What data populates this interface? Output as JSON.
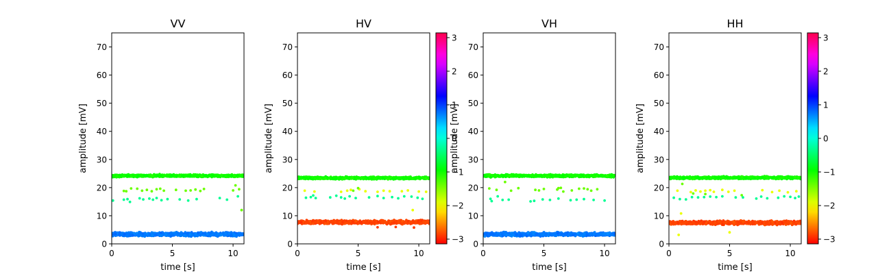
{
  "figure": {
    "background": "#ffffff"
  },
  "chart_data": [
    {
      "type": "scatter",
      "title": "VV",
      "xlabel": "time [s]",
      "ylabel": "amplitude [mV]",
      "xlim": [
        0,
        10.9
      ],
      "ylim": [
        0,
        75
      ],
      "xticks": [
        0,
        5,
        10
      ],
      "yticks": [
        0,
        10,
        20,
        30,
        40,
        50,
        60,
        70
      ],
      "grid": false,
      "colorbar": false,
      "series": [
        {
          "kind": "band",
          "x_range": [
            0,
            10.9
          ],
          "y_center": 24.2,
          "y_spread": 0.6,
          "phase": -1.0,
          "count": 900
        },
        {
          "kind": "band",
          "x_range": [
            0,
            10.9
          ],
          "y_center": 3.4,
          "y_spread": 0.9,
          "phase": 0.75,
          "count": 900
        },
        {
          "kind": "points",
          "phase": -1.4,
          "points": [
            [
              1.0,
              18.8
            ],
            [
              1.2,
              18.7
            ],
            [
              1.6,
              19.7
            ],
            [
              2.1,
              19.6
            ],
            [
              2.5,
              18.9
            ],
            [
              2.9,
              19.2
            ],
            [
              3.3,
              18.7
            ],
            [
              3.7,
              19.4
            ],
            [
              4.0,
              19.6
            ],
            [
              4.3,
              18.9
            ],
            [
              5.3,
              19.2
            ],
            [
              6.1,
              18.9
            ],
            [
              6.5,
              19.0
            ],
            [
              6.9,
              19.3
            ],
            [
              7.3,
              18.8
            ],
            [
              7.6,
              19.5
            ],
            [
              10.0,
              19.0
            ],
            [
              10.2,
              20.8
            ],
            [
              10.5,
              19.4
            ],
            [
              10.7,
              12.0
            ]
          ]
        },
        {
          "kind": "points",
          "phase": -0.3,
          "points": [
            [
              0.1,
              15.4
            ],
            [
              1.0,
              15.7
            ],
            [
              1.3,
              15.9
            ],
            [
              1.5,
              14.9
            ],
            [
              2.3,
              16.2
            ],
            [
              2.6,
              15.8
            ],
            [
              3.1,
              16.1
            ],
            [
              3.4,
              15.7
            ],
            [
              3.7,
              16.3
            ],
            [
              4.1,
              15.5
            ],
            [
              4.6,
              15.9
            ],
            [
              5.6,
              15.8
            ],
            [
              6.3,
              15.4
            ],
            [
              7.0,
              15.9
            ],
            [
              8.9,
              16.3
            ],
            [
              9.5,
              15.7
            ],
            [
              10.4,
              16.9
            ]
          ]
        }
      ]
    },
    {
      "type": "scatter",
      "title": "HV",
      "xlabel": "time [s]",
      "ylabel": "amplitude [mV]",
      "xlim": [
        0,
        10.9
      ],
      "ylim": [
        0,
        75
      ],
      "xticks": [
        0,
        5,
        10
      ],
      "yticks": [
        0,
        10,
        20,
        30,
        40,
        50,
        60,
        70
      ],
      "grid": false,
      "colorbar": true,
      "series": [
        {
          "kind": "band",
          "x_range": [
            0,
            10.9
          ],
          "y_center": 23.4,
          "y_spread": 0.6,
          "phase": -1.0,
          "count": 900
        },
        {
          "kind": "band",
          "x_range": [
            0,
            10.9
          ],
          "y_center": 7.7,
          "y_spread": 0.9,
          "phase": -2.85,
          "count": 900
        },
        {
          "kind": "points",
          "phase": -1.95,
          "points": [
            [
              0.6,
              18.9
            ],
            [
              1.4,
              18.6
            ],
            [
              3.6,
              18.5
            ],
            [
              4.1,
              18.9
            ],
            [
              4.4,
              19.2
            ],
            [
              5.1,
              19.4
            ],
            [
              5.6,
              18.7
            ],
            [
              6.6,
              18.5
            ],
            [
              7.1,
              18.9
            ],
            [
              7.6,
              18.7
            ],
            [
              8.6,
              18.7
            ],
            [
              9.1,
              19.0
            ],
            [
              10.0,
              18.6
            ],
            [
              10.6,
              18.5
            ],
            [
              9.5,
              12.0
            ]
          ]
        },
        {
          "kind": "points",
          "phase": -1.4,
          "points": [
            [
              5.0,
              19.8
            ],
            [
              4.6,
              18.9
            ]
          ]
        },
        {
          "kind": "points",
          "phase": -0.3,
          "points": [
            [
              0.7,
              16.4
            ],
            [
              1.1,
              16.6
            ],
            [
              1.5,
              16.3
            ],
            [
              1.3,
              17.2
            ],
            [
              2.7,
              16.5
            ],
            [
              3.2,
              17.1
            ],
            [
              3.6,
              16.5
            ],
            [
              3.9,
              16.1
            ],
            [
              4.3,
              16.9
            ],
            [
              4.8,
              16.3
            ],
            [
              5.9,
              16.5
            ],
            [
              6.6,
              17.0
            ],
            [
              7.1,
              16.3
            ],
            [
              7.8,
              16.6
            ],
            [
              8.3,
              16.2
            ],
            [
              8.8,
              16.9
            ],
            [
              9.4,
              16.8
            ],
            [
              9.9,
              16.4
            ],
            [
              10.3,
              16.0
            ]
          ]
        },
        {
          "kind": "points",
          "phase": -2.9,
          "points": [
            [
              8.1,
              6.0
            ],
            [
              9.6,
              5.8
            ],
            [
              6.6,
              5.9
            ]
          ]
        }
      ]
    },
    {
      "type": "scatter",
      "title": "VH",
      "xlabel": "time [s]",
      "ylabel": "amplitude [mV]",
      "xlim": [
        0,
        10.9
      ],
      "ylim": [
        0,
        75
      ],
      "xticks": [
        0,
        5,
        10
      ],
      "yticks": [
        0,
        10,
        20,
        30,
        40,
        50,
        60,
        70
      ],
      "grid": false,
      "colorbar": false,
      "series": [
        {
          "kind": "band",
          "x_range": [
            0,
            10.9
          ],
          "y_center": 24.2,
          "y_spread": 0.6,
          "phase": -1.0,
          "count": 900
        },
        {
          "kind": "band",
          "x_range": [
            0,
            10.9
          ],
          "y_center": 3.4,
          "y_spread": 0.9,
          "phase": 0.75,
          "count": 900
        },
        {
          "kind": "points",
          "phase": -1.4,
          "points": [
            [
              0.5,
              19.7
            ],
            [
              1.1,
              19.2
            ],
            [
              1.8,
              22.0
            ],
            [
              2.3,
              18.9
            ],
            [
              2.9,
              19.8
            ],
            [
              4.3,
              19.2
            ],
            [
              4.6,
              19.0
            ],
            [
              5.0,
              19.5
            ],
            [
              6.1,
              19.3
            ],
            [
              6.4,
              19.9
            ],
            [
              6.6,
              18.6
            ],
            [
              7.3,
              19.0
            ],
            [
              7.9,
              19.6
            ],
            [
              8.3,
              19.7
            ],
            [
              8.6,
              19.4
            ],
            [
              8.9,
              18.9
            ],
            [
              9.4,
              19.4
            ],
            [
              6.2,
              19.8
            ]
          ]
        },
        {
          "kind": "points",
          "phase": -0.3,
          "points": [
            [
              0.6,
              16.0
            ],
            [
              0.7,
              15.2
            ],
            [
              1.2,
              16.9
            ],
            [
              1.6,
              15.6
            ],
            [
              2.1,
              15.7
            ],
            [
              3.9,
              15.1
            ],
            [
              4.2,
              15.3
            ],
            [
              4.9,
              15.8
            ],
            [
              5.5,
              15.6
            ],
            [
              6.2,
              16.1
            ],
            [
              7.2,
              15.5
            ],
            [
              7.7,
              15.7
            ],
            [
              8.3,
              15.9
            ],
            [
              9.1,
              15.6
            ],
            [
              10.0,
              15.4
            ]
          ]
        }
      ]
    },
    {
      "type": "scatter",
      "title": "HH",
      "xlabel": "time [s]",
      "ylabel": "amplitude [mV]",
      "xlim": [
        0,
        10.9
      ],
      "ylim": [
        0,
        75
      ],
      "xticks": [
        0,
        5,
        10
      ],
      "yticks": [
        0,
        10,
        20,
        30,
        40,
        50,
        60,
        70
      ],
      "grid": false,
      "colorbar": true,
      "series": [
        {
          "kind": "band",
          "x_range": [
            0,
            10.9
          ],
          "y_center": 23.5,
          "y_spread": 0.6,
          "phase": -1.0,
          "count": 900
        },
        {
          "kind": "band",
          "x_range": [
            0,
            10.9
          ],
          "y_center": 7.5,
          "y_spread": 0.9,
          "phase": -2.85,
          "count": 900
        },
        {
          "kind": "points",
          "phase": -1.95,
          "points": [
            [
              0.7,
              18.9
            ],
            [
              1.8,
              18.4
            ],
            [
              2.2,
              19.0
            ],
            [
              2.6,
              18.6
            ],
            [
              3.0,
              18.9
            ],
            [
              3.4,
              19.1
            ],
            [
              3.7,
              18.5
            ],
            [
              4.4,
              19.2
            ],
            [
              4.9,
              18.5
            ],
            [
              5.4,
              18.9
            ],
            [
              7.7,
              19.1
            ],
            [
              8.5,
              18.4
            ],
            [
              9.1,
              18.9
            ],
            [
              9.8,
              18.3
            ],
            [
              10.5,
              18.7
            ],
            [
              1.0,
              10.8
            ],
            [
              0.8,
              3.2
            ],
            [
              5.0,
              4.1
            ]
          ]
        },
        {
          "kind": "points",
          "phase": -1.4,
          "points": [
            [
              1.1,
              21.3
            ],
            [
              2.0,
              17.9
            ],
            [
              3.0,
              17.7
            ],
            [
              6.0,
              17.3
            ]
          ]
        },
        {
          "kind": "points",
          "phase": -0.3,
          "points": [
            [
              0.4,
              16.4
            ],
            [
              0.9,
              15.9
            ],
            [
              1.4,
              15.8
            ],
            [
              1.9,
              16.6
            ],
            [
              2.4,
              16.5
            ],
            [
              2.9,
              16.6
            ],
            [
              3.4,
              16.8
            ],
            [
              3.9,
              16.6
            ],
            [
              4.4,
              16.9
            ],
            [
              5.5,
              16.5
            ],
            [
              6.1,
              16.5
            ],
            [
              7.2,
              16.1
            ],
            [
              7.6,
              16.8
            ],
            [
              8.1,
              16.2
            ],
            [
              9.0,
              16.4
            ],
            [
              9.5,
              16.9
            ],
            [
              10.0,
              16.7
            ],
            [
              10.4,
              16.3
            ],
            [
              10.7,
              16.8
            ]
          ]
        }
      ]
    }
  ],
  "colorbar_scale": {
    "colormap": "hsv",
    "range": [
      -3.14159,
      3.14159
    ],
    "ticks": [
      -3,
      -2,
      -1,
      0,
      1,
      2,
      3
    ],
    "tick_labels": [
      "−3",
      "−2",
      "−1",
      "0",
      "1",
      "2",
      "3"
    ]
  }
}
